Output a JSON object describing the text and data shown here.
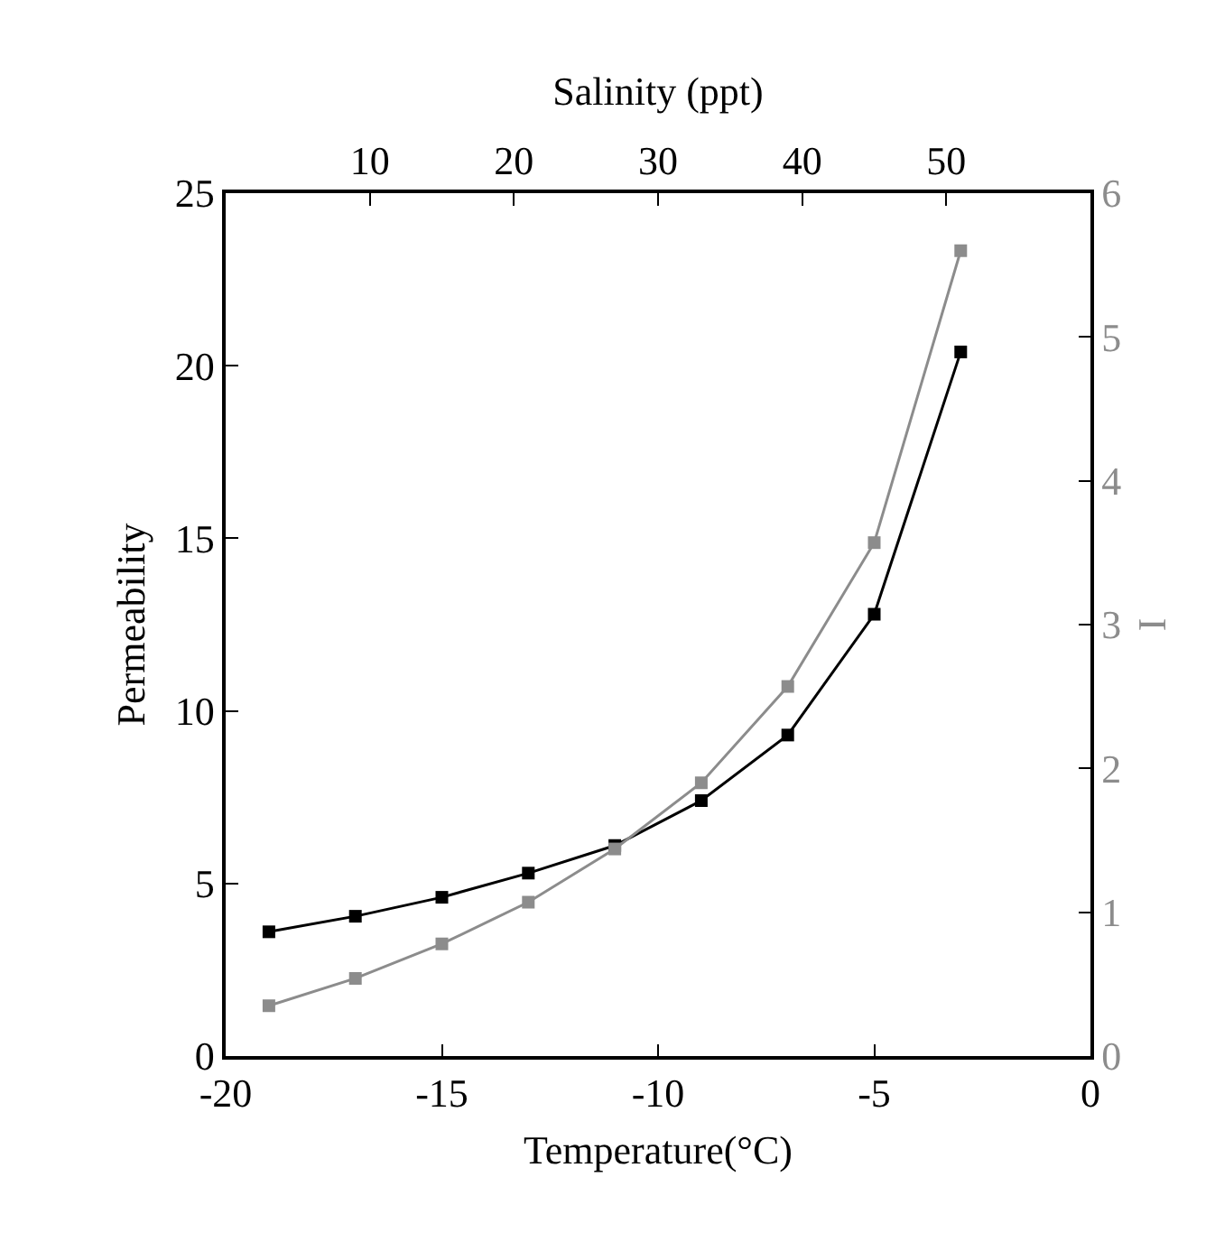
{
  "chart_data": {
    "type": "line",
    "xlabel": "Temperature(°C)",
    "x2label": "Salinity (ppt)",
    "ylabel": "Permeability",
    "y2label": "I",
    "x": [
      -19,
      -17,
      -15,
      -13,
      -11,
      -9,
      -7,
      -5,
      -3
    ],
    "xlim": [
      -20,
      0
    ],
    "xticks": [
      -20,
      -15,
      -10,
      -5,
      0
    ],
    "x2lim": [
      0,
      60
    ],
    "x2ticks": [
      10,
      20,
      30,
      40,
      50
    ],
    "ylim": [
      0,
      25
    ],
    "yticks": [
      0,
      5,
      10,
      15,
      20,
      25
    ],
    "y2lim": [
      0,
      6
    ],
    "y2ticks": [
      0,
      1,
      2,
      3,
      4,
      5,
      6
    ],
    "series": [
      {
        "color": "#000000",
        "values": [
          3.6,
          4.05,
          4.6,
          5.3,
          6.1,
          7.4,
          9.3,
          12.8,
          20.4
        ]
      },
      {
        "color": "#8c8c8c",
        "axis": "y2",
        "values": [
          0.35,
          0.54,
          0.78,
          1.07,
          1.44,
          1.9,
          2.57,
          3.57,
          5.6
        ]
      }
    ],
    "marker": "square",
    "line_style": "solid"
  }
}
